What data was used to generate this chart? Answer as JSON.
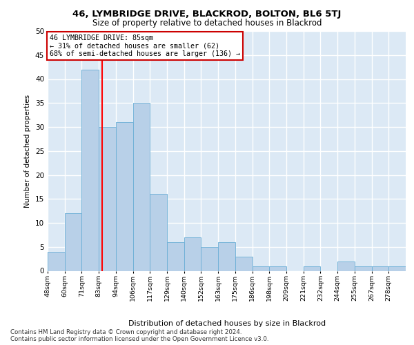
{
  "title1": "46, LYMBRIDGE DRIVE, BLACKROD, BOLTON, BL6 5TJ",
  "title2": "Size of property relative to detached houses in Blackrod",
  "xlabel": "Distribution of detached houses by size in Blackrod",
  "ylabel": "Number of detached properties",
  "categories": [
    "48sqm",
    "60sqm",
    "71sqm",
    "83sqm",
    "94sqm",
    "106sqm",
    "117sqm",
    "129sqm",
    "140sqm",
    "152sqm",
    "163sqm",
    "175sqm",
    "186sqm",
    "198sqm",
    "209sqm",
    "221sqm",
    "232sqm",
    "244sqm",
    "255sqm",
    "267sqm",
    "278sqm"
  ],
  "values": [
    4,
    12,
    42,
    30,
    31,
    35,
    16,
    6,
    7,
    5,
    6,
    3,
    1,
    1,
    0,
    1,
    0,
    2,
    1,
    1,
    1
  ],
  "bar_color": "#b8d0e8",
  "bar_edge_color": "#6aaed6",
  "ylim": [
    0,
    50
  ],
  "yticks": [
    0,
    5,
    10,
    15,
    20,
    25,
    30,
    35,
    40,
    45,
    50
  ],
  "red_line_bin": 3.5,
  "annotation_title": "46 LYMBRIDGE DRIVE: 85sqm",
  "annotation_line1": "← 31% of detached houses are smaller (62)",
  "annotation_line2": "68% of semi-detached houses are larger (136) →",
  "annotation_box_color": "#ffffff",
  "annotation_box_edge": "#cc0000",
  "footer_line1": "Contains HM Land Registry data © Crown copyright and database right 2024.",
  "footer_line2": "Contains public sector information licensed under the Open Government Licence v3.0.",
  "background_color": "#dce9f5",
  "grid_color": "#ffffff",
  "fig_background": "#ffffff"
}
